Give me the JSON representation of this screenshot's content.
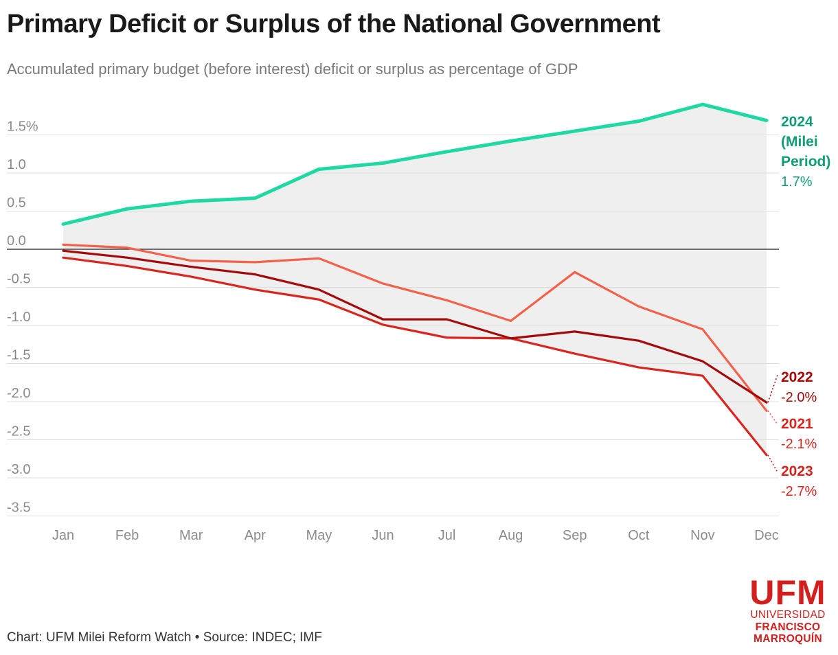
{
  "header": {
    "title": "Primary Deficit or Surplus of the National Government",
    "subtitle": "Accumulated primary budget (before interest) deficit or surplus as percentage of GDP"
  },
  "footer": {
    "text": "Chart: UFM Milei Reform Watch • Source: INDEC; IMF"
  },
  "logo": {
    "top": "UFM",
    "line1": "UNIVERSIDAD",
    "line2": "FRANCISCO",
    "line3": "MARROQUÍN"
  },
  "colors": {
    "y2024": "#1ed9a4",
    "y2024_label": "#0f9e73",
    "y2022": "#a50a0a",
    "y2021": "#f4614a",
    "y2023": "#d8261e",
    "band": "#efefef",
    "grid": "#dddddd",
    "zero": "#222222",
    "tick": "#8c8c8c"
  },
  "chart_data": {
    "type": "line",
    "title": "Primary Deficit or Surplus of the National Government",
    "xlabel": "",
    "ylabel": "",
    "categories": [
      "Jan",
      "Feb",
      "Mar",
      "Apr",
      "May",
      "Jun",
      "Jul",
      "Aug",
      "Sep",
      "Oct",
      "Nov",
      "Dec"
    ],
    "ylim": [
      -3.5,
      2.0
    ],
    "yticks": [
      1.5,
      1.0,
      0.5,
      0.0,
      -0.5,
      -1.0,
      -1.5,
      -2.0,
      -2.5,
      -3.0,
      -3.5
    ],
    "ytick_labels": [
      "1.5%",
      "1.0",
      "0.5",
      "0.0",
      "-0.5",
      "-1.0",
      "-1.5",
      "-2.0",
      "-2.5",
      "-3.0",
      "-3.5"
    ],
    "grid": true,
    "shaded_band": "between lowest and highest series",
    "series": [
      {
        "name": "2024",
        "color_key": "y2024",
        "label_lines": [
          "2024",
          "(Milei",
          "Period)"
        ],
        "end_label": "1.7%",
        "values": [
          0.33,
          0.53,
          0.63,
          0.67,
          1.05,
          1.13,
          1.28,
          1.42,
          1.55,
          1.68,
          1.9,
          1.69
        ]
      },
      {
        "name": "2022",
        "color_key": "y2022",
        "label_lines": [
          "2022"
        ],
        "end_label": "-2.0%",
        "values": [
          -0.02,
          -0.11,
          -0.23,
          -0.33,
          -0.53,
          -0.92,
          -0.92,
          -1.17,
          -1.08,
          -1.2,
          -1.47,
          -2.01
        ]
      },
      {
        "name": "2021",
        "color_key": "y2021",
        "label_lines": [
          "2021"
        ],
        "end_label": "-2.1%",
        "values": [
          0.06,
          0.02,
          -0.15,
          -0.17,
          -0.12,
          -0.45,
          -0.67,
          -0.94,
          -0.3,
          -0.75,
          -1.05,
          -2.12
        ]
      },
      {
        "name": "2023",
        "color_key": "y2023",
        "label_lines": [
          "2023"
        ],
        "end_label": "-2.7%",
        "values": [
          -0.11,
          -0.22,
          -0.36,
          -0.53,
          -0.66,
          -0.99,
          -1.16,
          -1.17,
          -1.37,
          -1.55,
          -1.66,
          -2.7
        ]
      }
    ]
  }
}
